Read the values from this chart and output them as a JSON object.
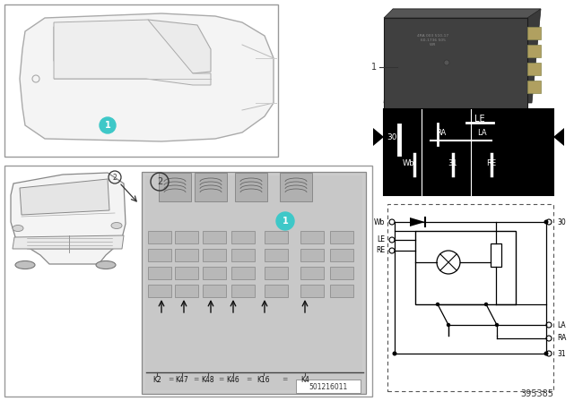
{
  "bg_color": "#ffffff",
  "teal_color": "#3ec8c8",
  "part_number": "395385",
  "diagram_number": "501216011",
  "k_labels": [
    "K2",
    "K47",
    "K48",
    "K46",
    "K16",
    "K4"
  ],
  "relay_photo_color": "#2a2a2a",
  "relay_pin_box_color": "#000000",
  "border_color": "#aaaaaa",
  "line_color": "#555555",
  "fuse_box_bg": "#d0d0d0"
}
